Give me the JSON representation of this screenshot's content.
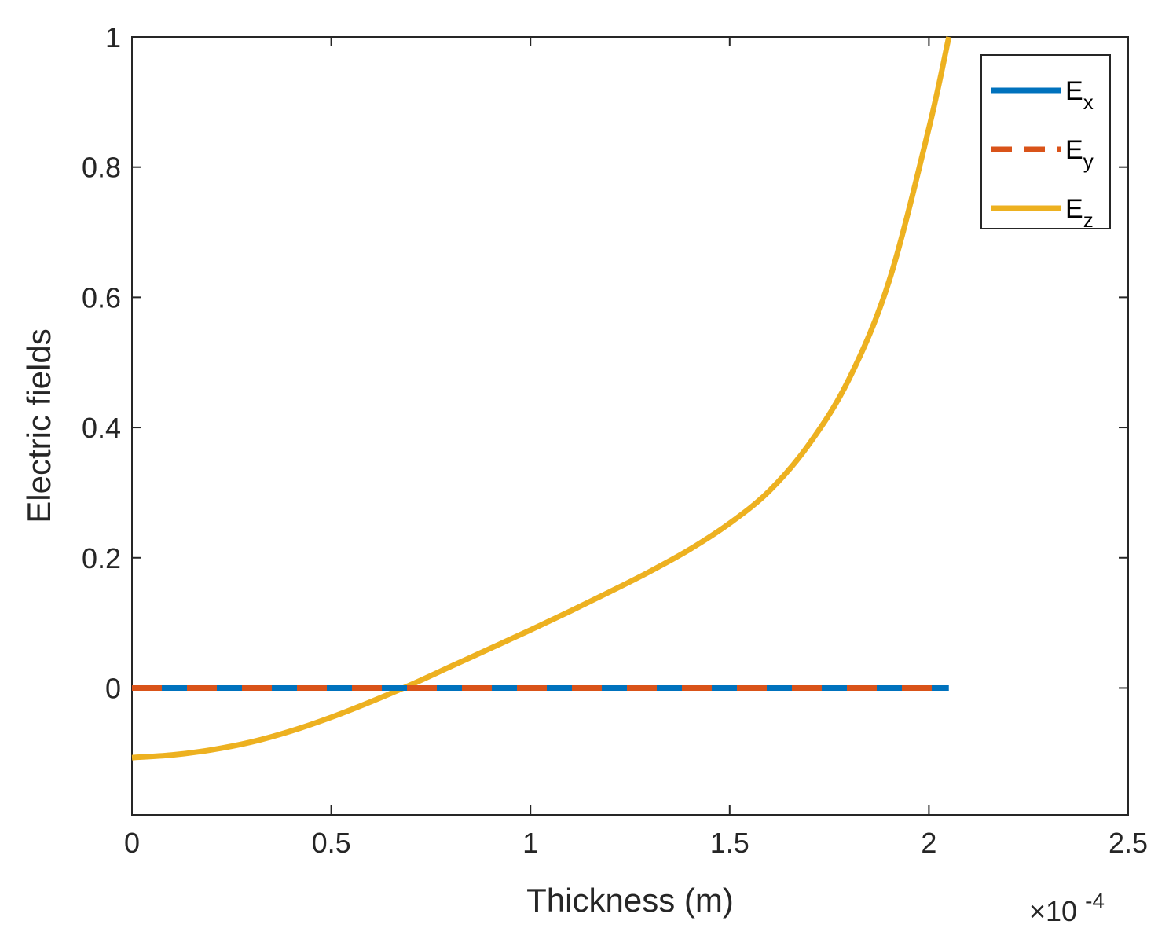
{
  "chart_data": {
    "type": "line",
    "title": "",
    "xlabel": "Thickness (m)",
    "ylabel": "Electric fields",
    "x_multiplier_base": "×10",
    "x_multiplier_exp": "-4",
    "xlim": [
      0,
      2.5
    ],
    "ylim": [
      -0.195,
      1.0
    ],
    "xticks": [
      0,
      0.5,
      1,
      1.5,
      2,
      2.5
    ],
    "xtick_labels": [
      "0",
      "0.5",
      "1",
      "1.5",
      "2",
      "2.5"
    ],
    "yticks": [
      0,
      0.2,
      0.4,
      0.6,
      0.8,
      1
    ],
    "ytick_labels": [
      "0",
      "0.2",
      "0.4",
      "0.6",
      "0.8",
      "1"
    ],
    "grid": false,
    "legend_position": "top-right",
    "series": [
      {
        "name": "E",
        "subscript": "x",
        "color": "#0072BD",
        "style": "solid",
        "x": [
          0,
          2.05
        ],
        "y": [
          0,
          0
        ]
      },
      {
        "name": "E",
        "subscript": "y",
        "color": "#D95319",
        "style": "dashed",
        "x": [
          0,
          2.05
        ],
        "y": [
          0,
          0
        ]
      },
      {
        "name": "E",
        "subscript": "z",
        "color": "#EDB120",
        "style": "solid",
        "x": [
          0,
          0.1,
          0.2,
          0.3,
          0.4,
          0.5,
          0.6,
          0.7,
          0.8,
          0.9,
          1.0,
          1.1,
          1.2,
          1.3,
          1.4,
          1.5,
          1.6,
          1.7,
          1.8,
          1.9,
          2.0,
          2.05
        ],
        "y": [
          -0.107,
          -0.103,
          -0.095,
          -0.083,
          -0.066,
          -0.045,
          -0.021,
          0.005,
          0.033,
          0.061,
          0.089,
          0.118,
          0.148,
          0.179,
          0.213,
          0.253,
          0.303,
          0.375,
          0.475,
          0.625,
          0.86,
          1.0
        ]
      }
    ]
  }
}
